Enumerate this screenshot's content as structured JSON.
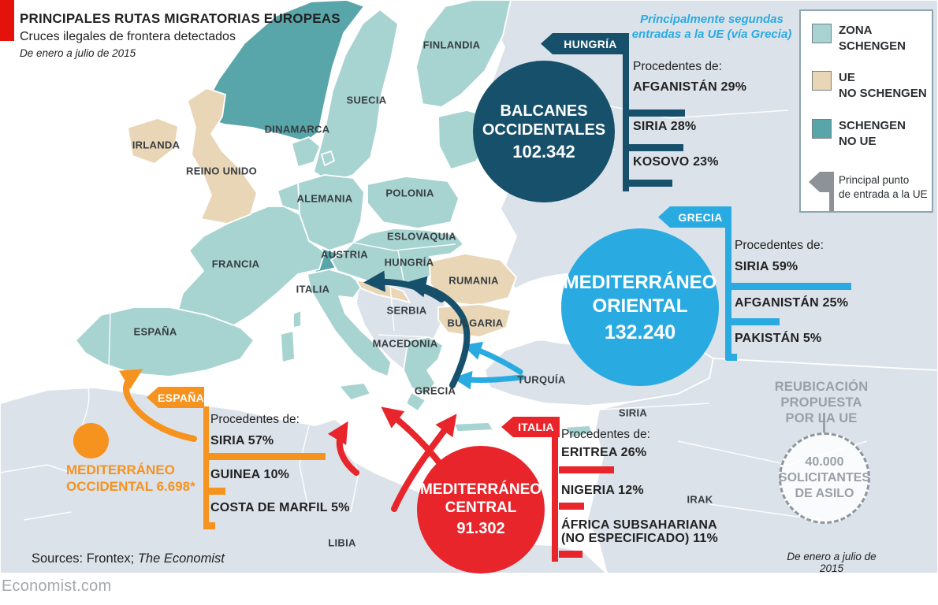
{
  "header": {
    "title": "PRINCIPALES RUTAS MIGRATORIAS EUROPEAS",
    "subtitle": "Cruces ilegales de frontera detectados",
    "period": "De enero a julio de 2015"
  },
  "colors": {
    "schengen": "#a7d4d1",
    "eu_no_schengen": "#e9d6b6",
    "schengen_no_eu": "#58a5aa",
    "non_eu_land": "#dbe2e9",
    "navy": "#17506b",
    "blue": "#29abe2",
    "red": "#e8252b",
    "orange": "#f6921e",
    "gray_text": "#99a0a7",
    "brand_red": "#e3120b"
  },
  "legend": {
    "items": [
      {
        "label": "ZONA\nSCHENGEN",
        "color": "#a7d4d1"
      },
      {
        "label": "UE\nNO SCHENGEN",
        "color": "#e9d6b6"
      },
      {
        "label": "SCHENGEN\nNO UE",
        "color": "#58a5aa"
      }
    ],
    "entry_point": {
      "label": "Principal punto\nde entrada a la UE"
    }
  },
  "map": {
    "labels": [
      {
        "text": "FINLANDIA"
      },
      {
        "text": "SUECIA"
      },
      {
        "text": "DINAMARCA"
      },
      {
        "text": "IRLANDA"
      },
      {
        "text": "REINO UNIDO"
      },
      {
        "text": "ALEMANIA"
      },
      {
        "text": "POLONIA"
      },
      {
        "text": "FRANCIA"
      },
      {
        "text": "AUSTRIA"
      },
      {
        "text": "ESLOVAQUIA"
      },
      {
        "text": "HUNGRÍA"
      },
      {
        "text": "ITALIA"
      },
      {
        "text": "RUMANIA"
      },
      {
        "text": "SERBIA"
      },
      {
        "text": "BULGARIA"
      },
      {
        "text": "MACEDONIA"
      },
      {
        "text": "ESPAÑA"
      },
      {
        "text": "GRECIA"
      },
      {
        "text": "TURQUÍA"
      },
      {
        "text": "SIRIA"
      },
      {
        "text": "IRAK"
      },
      {
        "text": "LIBIA"
      }
    ]
  },
  "routes": {
    "balcanes": {
      "tag": "HUNGRÍA",
      "note": "Principalmente segundas\nentradas a la UE (vía Grecia)",
      "circle_name": "BALCANES\nOCCIDENTALES",
      "circle_total": "102.342",
      "origins_title": "Procedentes de:",
      "origins": [
        {
          "label": "AFGANISTÁN 29%",
          "pct": 29
        },
        {
          "label": "SIRIA 28%",
          "pct": 28
        },
        {
          "label": "KOSOVO 23%",
          "pct": 23
        }
      ]
    },
    "oriental": {
      "tag": "GRECIA",
      "circle_name": "MEDITERRÁNEO\nORIENTAL",
      "circle_total": "132.240",
      "origins_title": "Procedentes de:",
      "origins": [
        {
          "label": "SIRIA 59%",
          "pct": 59
        },
        {
          "label": "AFGANISTÁN 25%",
          "pct": 25
        },
        {
          "label": "PAKISTÁN 5%",
          "pct": 5
        }
      ]
    },
    "central": {
      "tag": "ITALIA",
      "circle_name": "MEDITERRÁNEO\nCENTRAL",
      "circle_total": "91.302",
      "origins_title": "Procedentes de:",
      "origins": [
        {
          "label": "ERITREA 26%",
          "pct": 26
        },
        {
          "label": "NIGERIA 12%",
          "pct": 12
        },
        {
          "label": "ÁFRICA SUBSAHARIANA\n(NO ESPECIFICADO) 11%",
          "pct": 11
        }
      ]
    },
    "occidental": {
      "tag": "ESPAÑA",
      "label": "MEDITERRÁNEO\nOCCIDENTAL 6.698*",
      "origins_title": "Procedentes de:",
      "origins": [
        {
          "label": "SIRIA 57%",
          "pct": 57
        },
        {
          "label": "GUINEA 10%",
          "pct": 10
        },
        {
          "label": "COSTA DE MARFIL 5%",
          "pct": 5
        }
      ]
    }
  },
  "relocation": {
    "heading": "REUBICACIÓN PROPUESTA\nPOR LA UE",
    "circle_text": "40.000\nSOLICITANTES\nDE ASILO",
    "period": "De enero a julio de 2015"
  },
  "footer": {
    "sources_prefix": "Sources: Frontex; ",
    "sources_source": "The Economist",
    "site": "Economist.com"
  }
}
